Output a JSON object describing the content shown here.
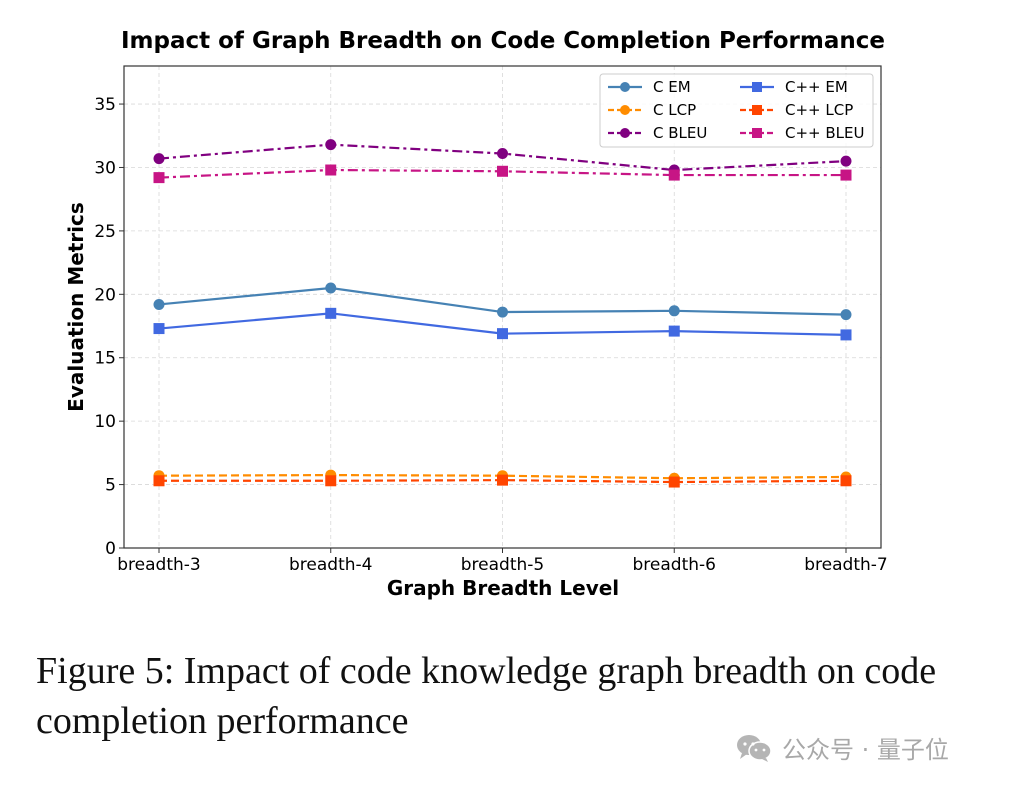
{
  "chart_data": {
    "type": "line",
    "title": "Impact of Graph Breadth on Code Completion Performance",
    "xlabel": "Graph Breadth Level",
    "ylabel": "Evaluation Metrics",
    "categories": [
      "breadth-3",
      "breadth-4",
      "breadth-5",
      "breadth-6",
      "breadth-7"
    ],
    "ylim": [
      0,
      38
    ],
    "yticks": [
      0,
      5,
      10,
      15,
      20,
      25,
      30,
      35
    ],
    "grid": true,
    "legend_position": "top-right",
    "series": [
      {
        "name": "C EM",
        "color": "#4682b4",
        "marker": "circle",
        "linestyle": "solid",
        "values": [
          19.2,
          20.5,
          18.6,
          18.7,
          18.4
        ]
      },
      {
        "name": "C LCP",
        "color": "#ff8c00",
        "marker": "circle",
        "linestyle": "dashed",
        "values": [
          5.7,
          5.75,
          5.7,
          5.5,
          5.6
        ]
      },
      {
        "name": "C BLEU",
        "color": "#800080",
        "marker": "circle",
        "linestyle": "dashdot",
        "values": [
          30.7,
          31.8,
          31.1,
          29.8,
          30.5
        ]
      },
      {
        "name": "C++ EM",
        "color": "#4169e1",
        "marker": "square",
        "linestyle": "solid",
        "values": [
          17.3,
          18.5,
          16.9,
          17.1,
          16.8
        ]
      },
      {
        "name": "C++ LCP",
        "color": "#ff4500",
        "marker": "square",
        "linestyle": "dashed",
        "values": [
          5.3,
          5.3,
          5.35,
          5.2,
          5.3
        ]
      },
      {
        "name": "C++ BLEU",
        "color": "#c71585",
        "marker": "square",
        "linestyle": "dashdot",
        "values": [
          29.2,
          29.8,
          29.7,
          29.4,
          29.4
        ]
      }
    ]
  },
  "caption": "Figure 5: Impact of code knowledge graph breadth on code completion performance",
  "watermark": {
    "icon": "wechat-icon",
    "text": "公众号 · 量子位"
  }
}
